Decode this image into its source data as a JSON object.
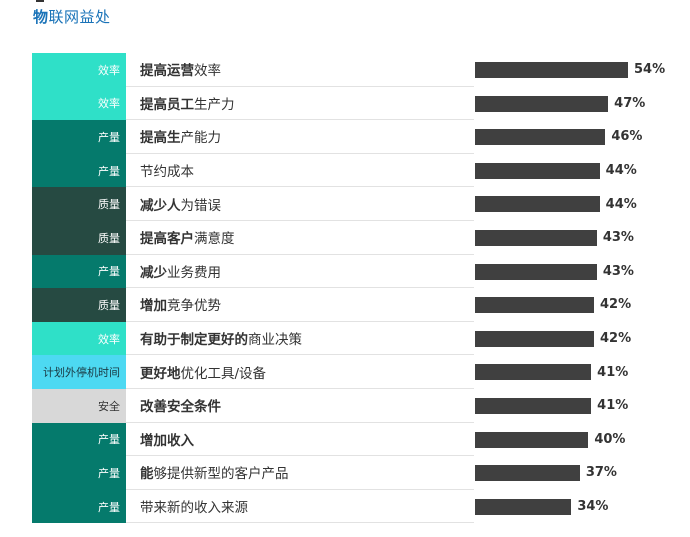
{
  "title": {
    "prefix": "物",
    "rest": "联网益处"
  },
  "colors": {
    "效率": "#2fe0c8",
    "产量": "#057a6c",
    "质量": "#264a42",
    "计划外停机时间": "#4dd9f2",
    "安全": "#d8d8d8",
    "bar": "#404040",
    "title": "#1a73b8"
  },
  "chart_data": {
    "type": "bar",
    "orientation": "horizontal",
    "title": "物联网益处",
    "value_unit": "%",
    "xlim": [
      0,
      54
    ],
    "categories": [
      {
        "label": "提高运营效率",
        "group": "效率",
        "value": 54
      },
      {
        "label": "提高员工生产力",
        "group": "效率",
        "value": 47
      },
      {
        "label": "提高生产能力",
        "group": "产量",
        "value": 46
      },
      {
        "label": "节约成本",
        "group": "产量",
        "value": 44
      },
      {
        "label": "减少人为错误",
        "group": "质量",
        "value": 44
      },
      {
        "label": "提高客户满意度",
        "group": "质量",
        "value": 43
      },
      {
        "label": "减少业务费用",
        "group": "产量",
        "value": 43
      },
      {
        "label": "增加竞争优势",
        "group": "质量",
        "value": 42
      },
      {
        "label": "有助于制定更好的商业决策",
        "group": "效率",
        "value": 42
      },
      {
        "label": "更好地优化工具/设备",
        "group": "计划外停机时间",
        "value": 41
      },
      {
        "label": "改善安全条件",
        "group": "安全",
        "value": 41
      },
      {
        "label": "增加收入",
        "group": "产量",
        "value": 40
      },
      {
        "label": "能够提供新型的客户产品",
        "group": "产量",
        "value": 37
      },
      {
        "label": "带来新的收入来源",
        "group": "产量",
        "value": 34
      }
    ]
  }
}
